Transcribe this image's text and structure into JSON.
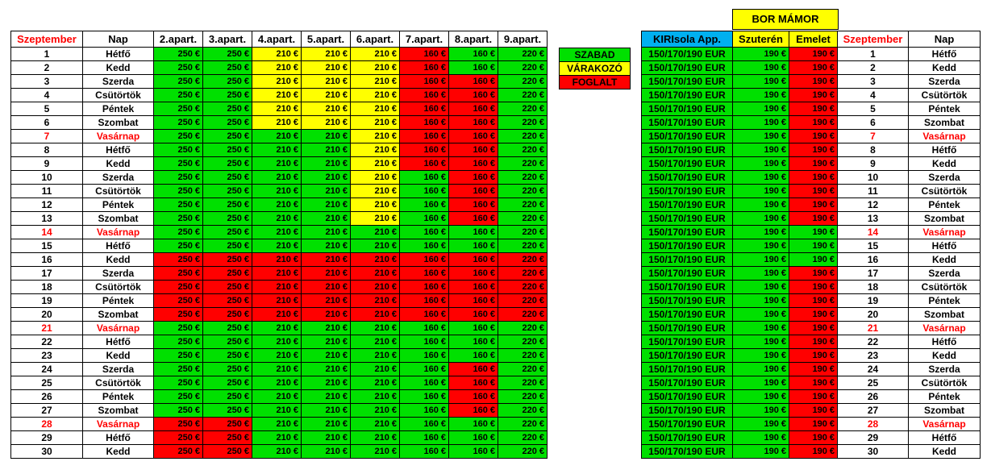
{
  "header": {
    "left": [
      "Szeptember",
      "Nap",
      "2.apart.",
      "3.apart.",
      "4.apart.",
      "5.apart.",
      "6.apart.",
      "7.apart.",
      "8.apart.",
      "9.apart."
    ],
    "right": [
      "KIRIsola App.",
      "Szuterén",
      "Emelet",
      "Szeptember",
      "Nap"
    ],
    "bor_title": "BOR  MÁMOR"
  },
  "legend": [
    {
      "label": "SZABAD",
      "color": "g"
    },
    {
      "label": "VÁRAKOZÓ",
      "color": "y"
    },
    {
      "label": "FOGLALT",
      "color": "r"
    }
  ],
  "prices": [
    "250 €",
    "250 €",
    "210 €",
    "210 €",
    "210 €",
    "160 €",
    "160 €",
    "220 €"
  ],
  "right_prices": {
    "kiri": "150/170/190 EUR",
    "szuteren": "190 €",
    "emelet": "190 €"
  },
  "colors": {
    "szabad": "#00e000",
    "varakozo": "#ffff00",
    "foglalt": "#ff0000",
    "kiri_header": "#00b0f0"
  },
  "rows": [
    {
      "day": "1",
      "name": "Hétfő",
      "sunday": false,
      "apts": "ggyyyrgg",
      "szut": "g",
      "emel": "r"
    },
    {
      "day": "2",
      "name": "Kedd",
      "sunday": false,
      "apts": "ggyyyrgg",
      "szut": "g",
      "emel": "r"
    },
    {
      "day": "3",
      "name": "Szerda",
      "sunday": false,
      "apts": "ggyyyrrg",
      "szut": "g",
      "emel": "r"
    },
    {
      "day": "4",
      "name": "Csütörtök",
      "sunday": false,
      "apts": "ggyyyrrg",
      "szut": "g",
      "emel": "r"
    },
    {
      "day": "5",
      "name": "Péntek",
      "sunday": false,
      "apts": "ggyyyrrg",
      "szut": "g",
      "emel": "r"
    },
    {
      "day": "6",
      "name": "Szombat",
      "sunday": false,
      "apts": "ggyyyrrg",
      "szut": "g",
      "emel": "r"
    },
    {
      "day": "7",
      "name": "Vasárnap",
      "sunday": true,
      "apts": "ggggyrrg",
      "szut": "g",
      "emel": "r"
    },
    {
      "day": "8",
      "name": "Hétfő",
      "sunday": false,
      "apts": "ggggyrrg",
      "szut": "g",
      "emel": "r"
    },
    {
      "day": "9",
      "name": "Kedd",
      "sunday": false,
      "apts": "ggggyrrg",
      "szut": "g",
      "emel": "r"
    },
    {
      "day": "10",
      "name": "Szerda",
      "sunday": false,
      "apts": "ggggygrg",
      "szut": "g",
      "emel": "r"
    },
    {
      "day": "11",
      "name": "Csütörtök",
      "sunday": false,
      "apts": "ggggygrg",
      "szut": "g",
      "emel": "r"
    },
    {
      "day": "12",
      "name": "Péntek",
      "sunday": false,
      "apts": "ggggygrg",
      "szut": "g",
      "emel": "r"
    },
    {
      "day": "13",
      "name": "Szombat",
      "sunday": false,
      "apts": "ggggygrg",
      "szut": "g",
      "emel": "r"
    },
    {
      "day": "14",
      "name": "Vasárnap",
      "sunday": true,
      "apts": "gggggggg",
      "szut": "g",
      "emel": "g"
    },
    {
      "day": "15",
      "name": "Hétfő",
      "sunday": false,
      "apts": "gggggggg",
      "szut": "g",
      "emel": "g"
    },
    {
      "day": "16",
      "name": "Kedd",
      "sunday": false,
      "apts": "rrrrrrrr",
      "szut": "g",
      "emel": "g"
    },
    {
      "day": "17",
      "name": "Szerda",
      "sunday": false,
      "apts": "rrrrrrrr",
      "szut": "g",
      "emel": "r"
    },
    {
      "day": "18",
      "name": "Csütörtök",
      "sunday": false,
      "apts": "rrrrrrrr",
      "szut": "g",
      "emel": "r"
    },
    {
      "day": "19",
      "name": "Péntek",
      "sunday": false,
      "apts": "rrrrrrrr",
      "szut": "g",
      "emel": "r"
    },
    {
      "day": "20",
      "name": "Szombat",
      "sunday": false,
      "apts": "rrrrrrrr",
      "szut": "g",
      "emel": "r"
    },
    {
      "day": "21",
      "name": "Vasárnap",
      "sunday": true,
      "apts": "gggggggg",
      "szut": "g",
      "emel": "r"
    },
    {
      "day": "22",
      "name": "Hétfő",
      "sunday": false,
      "apts": "gggggggg",
      "szut": "g",
      "emel": "r"
    },
    {
      "day": "23",
      "name": "Kedd",
      "sunday": false,
      "apts": "gggggggg",
      "szut": "g",
      "emel": "r"
    },
    {
      "day": "24",
      "name": "Szerda",
      "sunday": false,
      "apts": "ggggggrg",
      "szut": "g",
      "emel": "r"
    },
    {
      "day": "25",
      "name": "Csütörtök",
      "sunday": false,
      "apts": "ggggggrg",
      "szut": "g",
      "emel": "r"
    },
    {
      "day": "26",
      "name": "Péntek",
      "sunday": false,
      "apts": "ggggggrg",
      "szut": "g",
      "emel": "r"
    },
    {
      "day": "27",
      "name": "Szombat",
      "sunday": false,
      "apts": "ggggggrg",
      "szut": "g",
      "emel": "r"
    },
    {
      "day": "28",
      "name": "Vasárnap",
      "sunday": true,
      "apts": "rrgggggg",
      "szut": "g",
      "emel": "r"
    },
    {
      "day": "29",
      "name": "Hétfő",
      "sunday": false,
      "apts": "rrgggggg",
      "szut": "g",
      "emel": "r"
    },
    {
      "day": "30",
      "name": "Kedd",
      "sunday": false,
      "apts": "rrgggggg",
      "szut": "g",
      "emel": "r"
    }
  ]
}
